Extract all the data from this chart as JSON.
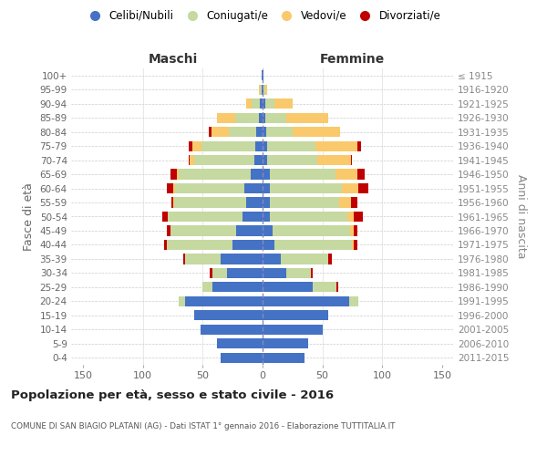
{
  "age_groups": [
    "0-4",
    "5-9",
    "10-14",
    "15-19",
    "20-24",
    "25-29",
    "30-34",
    "35-39",
    "40-44",
    "45-49",
    "50-54",
    "55-59",
    "60-64",
    "65-69",
    "70-74",
    "75-79",
    "80-84",
    "85-89",
    "90-94",
    "95-99",
    "100+"
  ],
  "birth_years": [
    "2011-2015",
    "2006-2010",
    "2001-2005",
    "1996-2000",
    "1991-1995",
    "1986-1990",
    "1981-1985",
    "1976-1980",
    "1971-1975",
    "1966-1970",
    "1961-1965",
    "1956-1960",
    "1951-1955",
    "1946-1950",
    "1941-1945",
    "1936-1940",
    "1931-1935",
    "1926-1930",
    "1921-1925",
    "1916-1920",
    "≤ 1915"
  ],
  "males": {
    "celibi": [
      35,
      38,
      52,
      57,
      65,
      42,
      30,
      35,
      25,
      22,
      17,
      14,
      15,
      10,
      7,
      6,
      5,
      3,
      2,
      1,
      1
    ],
    "coniugati": [
      0,
      0,
      0,
      0,
      5,
      8,
      12,
      30,
      55,
      55,
      62,
      60,
      58,
      60,
      50,
      45,
      23,
      20,
      7,
      1,
      0
    ],
    "vedovi": [
      0,
      0,
      0,
      0,
      0,
      0,
      0,
      0,
      0,
      0,
      0,
      1,
      2,
      2,
      4,
      8,
      15,
      15,
      5,
      1,
      0
    ],
    "divorziati": [
      0,
      0,
      0,
      0,
      0,
      0,
      2,
      1,
      2,
      3,
      5,
      1,
      5,
      5,
      1,
      3,
      2,
      0,
      0,
      0,
      0
    ]
  },
  "females": {
    "nubili": [
      35,
      38,
      50,
      55,
      72,
      42,
      20,
      15,
      10,
      8,
      6,
      6,
      6,
      6,
      4,
      4,
      3,
      2,
      2,
      1,
      1
    ],
    "coniugate": [
      0,
      0,
      0,
      0,
      8,
      20,
      20,
      40,
      65,
      65,
      65,
      58,
      60,
      55,
      42,
      40,
      22,
      18,
      8,
      1,
      0
    ],
    "vedove": [
      0,
      0,
      0,
      0,
      0,
      0,
      0,
      0,
      1,
      3,
      5,
      10,
      14,
      18,
      28,
      35,
      40,
      35,
      15,
      2,
      0
    ],
    "divorziate": [
      0,
      0,
      0,
      0,
      0,
      1,
      2,
      3,
      3,
      3,
      8,
      5,
      8,
      6,
      1,
      3,
      0,
      0,
      0,
      0,
      0
    ]
  },
  "colors": {
    "celibi": "#4472c4",
    "coniugati": "#c5d9a0",
    "vedovi": "#f9c96b",
    "divorziati": "#c00000"
  },
  "legend_labels": [
    "Celibi/Nubili",
    "Coniugati/e",
    "Vedovi/e",
    "Divorziati/e"
  ],
  "title": "Popolazione per età, sesso e stato civile - 2016",
  "subtitle": "COMUNE DI SAN BIAGIO PLATANI (AG) - Dati ISTAT 1° gennaio 2016 - Elaborazione TUTTITALIA.IT",
  "label_maschi": "Maschi",
  "label_femmine": "Femmine",
  "ylabel_left": "Fasce di età",
  "ylabel_right": "Anni di nascita",
  "xlim": 160,
  "xticks": [
    -150,
    -100,
    -50,
    0,
    50,
    100,
    150
  ],
  "xtick_labels": [
    "150",
    "100",
    "50",
    "0",
    "50",
    "100",
    "150"
  ]
}
